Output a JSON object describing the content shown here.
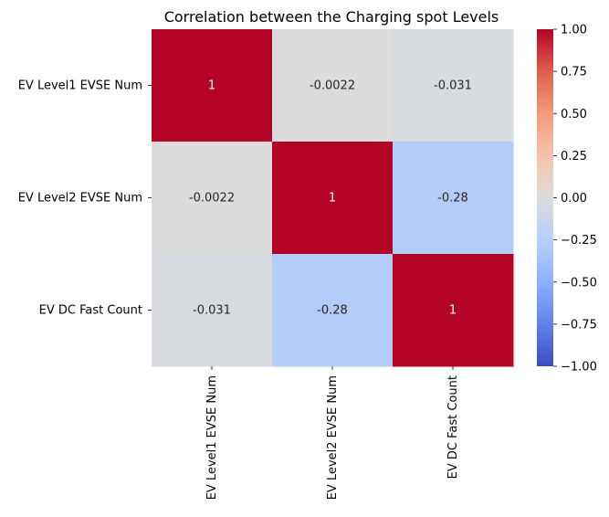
{
  "chart_data": {
    "type": "heatmap",
    "title": "Correlation between the Charging spot Levels",
    "xlabel": "",
    "ylabel": "",
    "row_labels": [
      "EV Level1 EVSE Num",
      "EV Level2 EVSE Num",
      "EV DC Fast Count"
    ],
    "col_labels": [
      "EV Level1 EVSE Num",
      "EV Level2 EVSE Num",
      "EV DC Fast Count"
    ],
    "values": [
      [
        1,
        -0.0022,
        -0.031
      ],
      [
        -0.0022,
        1,
        -0.28
      ],
      [
        -0.031,
        -0.28,
        1
      ]
    ],
    "annotations": [
      [
        "1",
        "-0.0022",
        "-0.031"
      ],
      [
        "-0.0022",
        "1",
        "-0.28"
      ],
      [
        "-0.031",
        "-0.28",
        "1"
      ]
    ],
    "colormap": "coolwarm",
    "vmin": -1,
    "vmax": 1,
    "colorbar_ticks": [
      "1.00",
      "0.75",
      "0.50",
      "0.25",
      "0.00",
      "−0.25",
      "−0.50",
      "−0.75",
      "−1.00"
    ],
    "colorbar_tick_values": [
      1,
      0.75,
      0.5,
      0.25,
      0,
      -0.25,
      -0.5,
      -0.75,
      -1
    ],
    "colors": {
      "high": "#b40426",
      "mid": "#dddcdc",
      "low": "#3b4cc0"
    },
    "grid": false
  }
}
